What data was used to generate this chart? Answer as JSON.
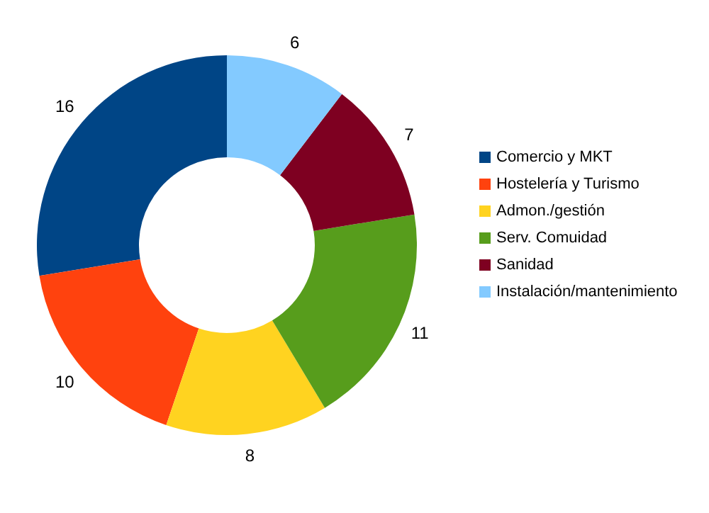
{
  "chart_data": {
    "type": "donut",
    "categories": [
      "Comercio y MKT",
      "Hostelería y Turismo",
      "Admon./gestión",
      "Serv. Comuidad",
      "Sanidad",
      "Instalación/mantenimiento"
    ],
    "values": [
      16,
      10,
      8,
      11,
      7,
      6
    ],
    "colors": [
      "#004586",
      "#ff420e",
      "#ffd320",
      "#579d1c",
      "#7e0021",
      "#83caff"
    ],
    "data_labels": true,
    "legend": "right"
  }
}
